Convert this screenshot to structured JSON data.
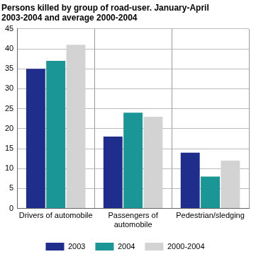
{
  "chart_data": {
    "type": "bar",
    "title": "Persons killed by group of road-user. January-April 2003-2004 and average 2000-2004",
    "categories": [
      "Drivers of automobile",
      "Passengers of automobile",
      "Pedestrian/sledging"
    ],
    "series": [
      {
        "name": "2003",
        "color": "#1f2e8c",
        "values": [
          35,
          18,
          14
        ]
      },
      {
        "name": "2004",
        "color": "#1a9696",
        "values": [
          37,
          24,
          8
        ]
      },
      {
        "name": "2000-2004",
        "color": "#d3d3d3",
        "values": [
          41,
          23,
          12
        ]
      }
    ],
    "ylim": [
      0,
      45
    ],
    "yticks": [
      0,
      5,
      10,
      15,
      20,
      25,
      30,
      35,
      40,
      45
    ],
    "grid": true,
    "legend": "bottom"
  }
}
